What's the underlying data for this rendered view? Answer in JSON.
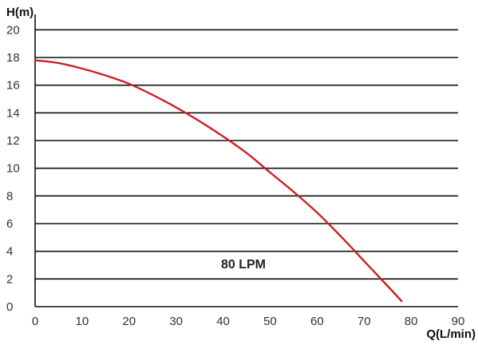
{
  "chart_data": {
    "type": "line",
    "ylabel": "H(m)",
    "xlabel": "Q(L/min)",
    "xlim": [
      0,
      90
    ],
    "ylim": [
      0,
      21
    ],
    "x_ticks": [
      "0",
      "10",
      "20",
      "30",
      "40",
      "50",
      "60",
      "70",
      "80",
      "90"
    ],
    "y_ticks": [
      "0",
      "2",
      "4",
      "6",
      "8",
      "10",
      "12",
      "14",
      "16",
      "18",
      "20"
    ],
    "grid": "horizontal",
    "annotation": "80 LPM",
    "series": [
      {
        "x": [
          0,
          5,
          10,
          15,
          20,
          25,
          30,
          35,
          40,
          45,
          50,
          55,
          60,
          65,
          70,
          75,
          78
        ],
        "y": [
          17.8,
          17.6,
          17.2,
          16.7,
          16.1,
          15.3,
          14.4,
          13.4,
          12.3,
          11.1,
          9.7,
          8.3,
          6.8,
          5.1,
          3.3,
          1.5,
          0.4
        ],
        "color": "#cc1f27"
      }
    ],
    "colors": {
      "grid": "#111111",
      "axis": "#111111",
      "curve": "#cc1f27"
    }
  }
}
